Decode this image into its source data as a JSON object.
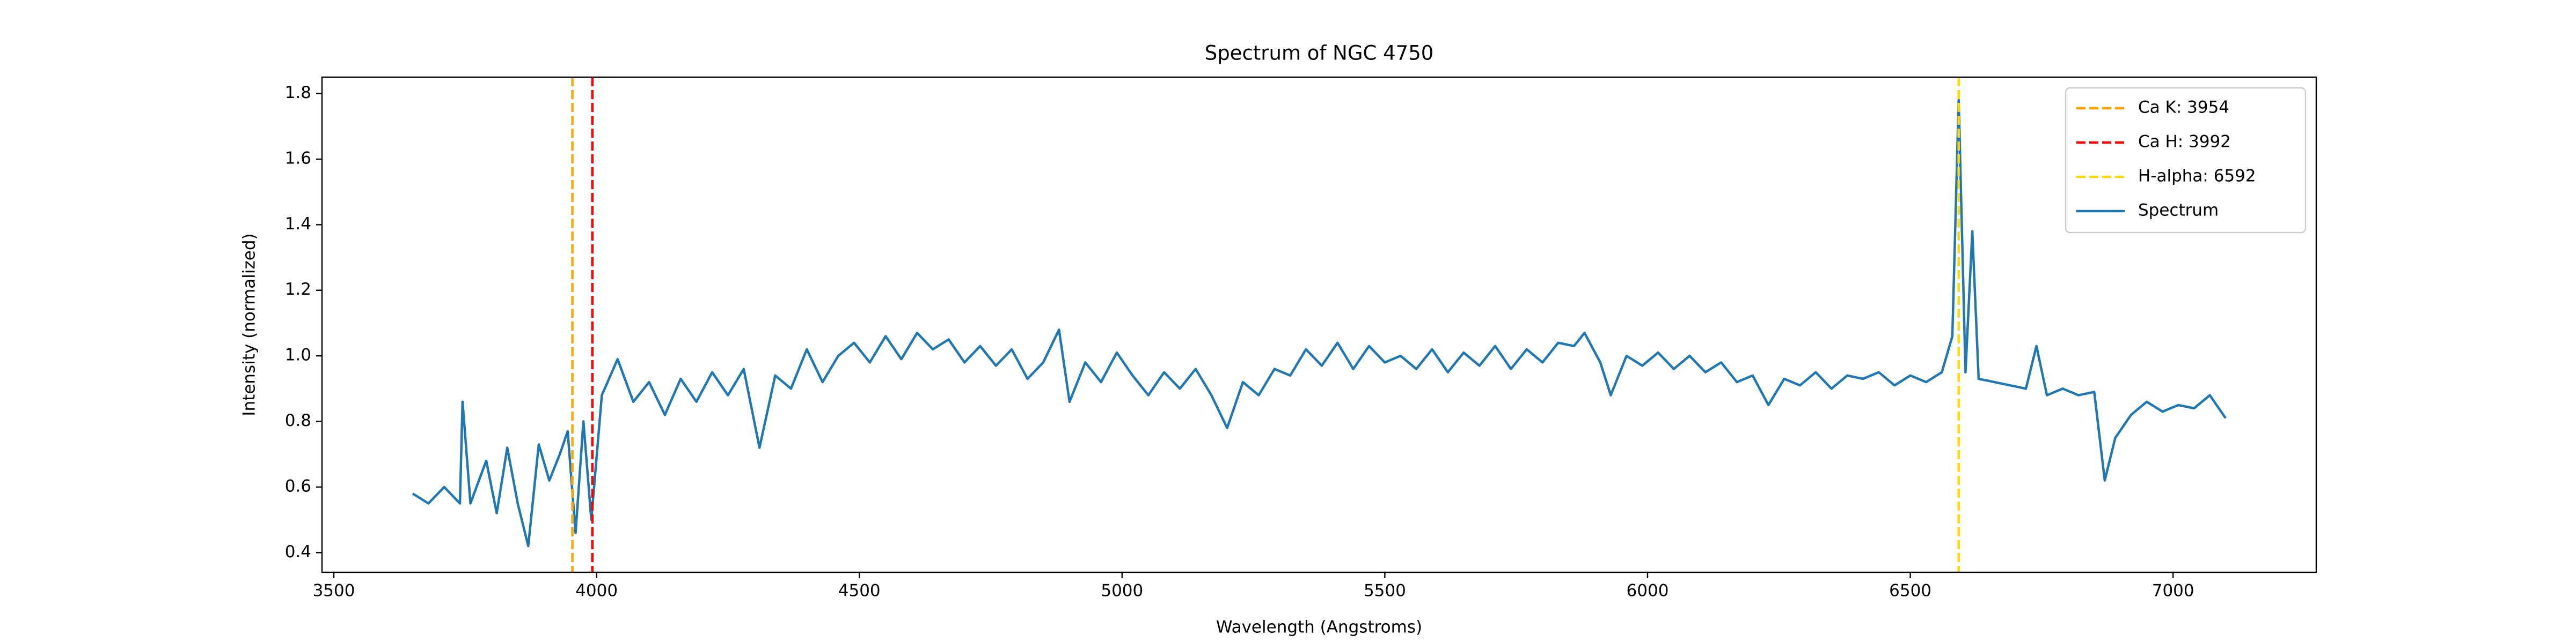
{
  "chart_data": {
    "type": "line",
    "title": "Spectrum of NGC 4750",
    "x_label": "Wavelength (Angstroms)",
    "y_label": "Intensity (normalized)",
    "xlim": [
      3477.5,
      7272.5
    ],
    "ylim": [
      0.34,
      1.85
    ],
    "xticks": [
      3500,
      4000,
      4500,
      5000,
      5500,
      6000,
      6500,
      7000
    ],
    "yticks": [
      0.4,
      0.6,
      0.8,
      {
        "value": 1,
        "label": "1.0"
      },
      1.2,
      1.4,
      1.6,
      1.8
    ],
    "grid": false,
    "legend": "upper right",
    "vlines": [
      {
        "name": "Ca K: 3954",
        "value": 3954,
        "color": "#ffa500"
      },
      {
        "name": "Ca H: 3992",
        "value": 3992,
        "color": "#ff0000"
      },
      {
        "name": "H-alpha: 6592",
        "value": 6592,
        "color": "#ffd700"
      }
    ],
    "x": [
      3650,
      3680,
      3710,
      3740,
      3745,
      3760,
      3790,
      3810,
      3830,
      3850,
      3870,
      3890,
      3910,
      3930,
      3945,
      3960,
      3975,
      3990,
      4010,
      4040,
      4070,
      4100,
      4130,
      4160,
      4190,
      4220,
      4250,
      4280,
      4310,
      4340,
      4370,
      4400,
      4430,
      4460,
      4490,
      4520,
      4550,
      4580,
      4610,
      4640,
      4670,
      4700,
      4730,
      4760,
      4790,
      4820,
      4850,
      4880,
      4900,
      4930,
      4960,
      4990,
      5020,
      5050,
      5080,
      5110,
      5140,
      5170,
      5200,
      5230,
      5260,
      5290,
      5320,
      5350,
      5380,
      5410,
      5440,
      5470,
      5500,
      5530,
      5560,
      5590,
      5620,
      5650,
      5680,
      5710,
      5740,
      5770,
      5800,
      5830,
      5860,
      5880,
      5910,
      5930,
      5960,
      5990,
      6020,
      6050,
      6080,
      6110,
      6140,
      6170,
      6200,
      6230,
      6260,
      6290,
      6320,
      6350,
      6380,
      6410,
      6440,
      6470,
      6500,
      6530,
      6560,
      6580,
      6592,
      6605,
      6618,
      6630,
      6660,
      6690,
      6720,
      6740,
      6760,
      6790,
      6820,
      6850,
      6870,
      6890,
      6920,
      6950,
      6980,
      7010,
      7040,
      7070,
      7100
    ],
    "series": [
      {
        "name": "Spectrum",
        "color": "#1f77b4",
        "values": [
          0.58,
          0.55,
          0.6,
          0.55,
          0.86,
          0.55,
          0.68,
          0.52,
          0.72,
          0.55,
          0.42,
          0.73,
          0.62,
          0.7,
          0.77,
          0.46,
          0.8,
          0.5,
          0.88,
          0.99,
          0.86,
          0.92,
          0.82,
          0.93,
          0.86,
          0.95,
          0.88,
          0.96,
          0.72,
          0.94,
          0.9,
          1.02,
          0.92,
          1.0,
          1.04,
          0.98,
          1.06,
          0.99,
          1.07,
          1.02,
          1.05,
          0.98,
          1.03,
          0.97,
          1.02,
          0.93,
          0.98,
          1.08,
          0.86,
          0.98,
          0.92,
          1.01,
          0.94,
          0.88,
          0.95,
          0.9,
          0.96,
          0.88,
          0.78,
          0.92,
          0.88,
          0.96,
          0.94,
          1.02,
          0.97,
          1.04,
          0.96,
          1.03,
          0.98,
          1.0,
          0.96,
          1.02,
          0.95,
          1.01,
          0.97,
          1.03,
          0.96,
          1.02,
          0.98,
          1.04,
          1.03,
          1.07,
          0.98,
          0.88,
          1.0,
          0.97,
          1.01,
          0.96,
          1.0,
          0.95,
          0.98,
          0.92,
          0.94,
          0.85,
          0.93,
          0.91,
          0.95,
          0.9,
          0.94,
          0.93,
          0.95,
          0.91,
          0.94,
          0.92,
          0.95,
          1.06,
          1.78,
          0.95,
          1.38,
          0.93,
          0.92,
          0.91,
          0.9,
          1.03,
          0.88,
          0.9,
          0.88,
          0.89,
          0.62,
          0.75,
          0.82,
          0.86,
          0.83,
          0.85,
          0.84,
          0.88,
          0.81
        ]
      }
    ]
  }
}
